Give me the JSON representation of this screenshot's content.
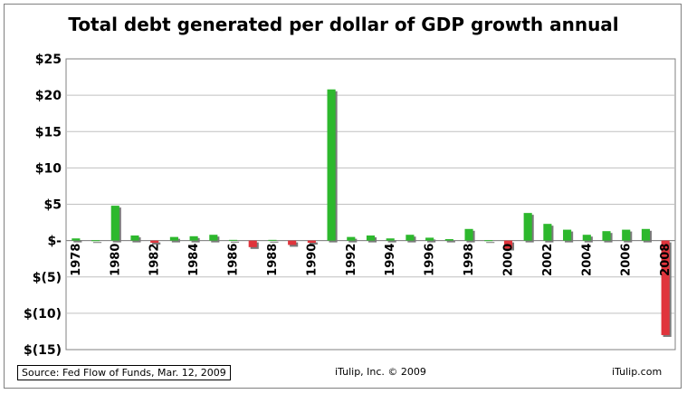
{
  "chart_data": {
    "type": "bar",
    "title": "Total debt generated per dollar of GDP growth annual",
    "ylim": [
      -15,
      25
    ],
    "y_ticks": [
      25,
      20,
      15,
      10,
      5,
      0,
      -5,
      -10,
      -15
    ],
    "y_tick_labels": [
      "$25",
      "$20",
      "$15",
      "$10",
      "$5",
      "$-",
      "$(5)",
      "$(10)",
      "$(15)"
    ],
    "x_tick_labels": [
      "1978",
      "1980",
      "1982",
      "1984",
      "1986",
      "1988",
      "1990",
      "1992",
      "1994",
      "1996",
      "1998",
      "2000",
      "2002",
      "2004",
      "2006",
      "2008"
    ],
    "categories": [
      "1978",
      "1979",
      "1980",
      "1981",
      "1982",
      "1983",
      "1984",
      "1985",
      "1986",
      "1987",
      "1988",
      "1989",
      "1990",
      "1991",
      "1992",
      "1993",
      "1994",
      "1995",
      "1996",
      "1997",
      "1998",
      "1999",
      "2000",
      "2001",
      "2002",
      "2003",
      "2004",
      "2005",
      "2006",
      "2007",
      "2008"
    ],
    "values": [
      0.3,
      0.05,
      4.8,
      0.7,
      -0.3,
      0.5,
      0.6,
      0.8,
      0.1,
      -0.9,
      0.1,
      -0.6,
      -0.3,
      20.8,
      0.5,
      0.7,
      0.3,
      0.8,
      0.4,
      0.2,
      1.6,
      0.05,
      -1.1,
      3.8,
      2.3,
      1.5,
      0.8,
      1.3,
      1.5,
      1.6,
      -13.0
    ],
    "grid": true,
    "colors": {
      "positive": "#2db82d",
      "negative": "#e0343c",
      "shadow": "#7a7a7a",
      "grid": "#c0c0c0"
    }
  },
  "footer": {
    "source": "Source: Fed Flow of Funds, Mar. 12, 2009",
    "copyright": "iTulip, Inc. © 2009",
    "site": "iTulip.com"
  }
}
